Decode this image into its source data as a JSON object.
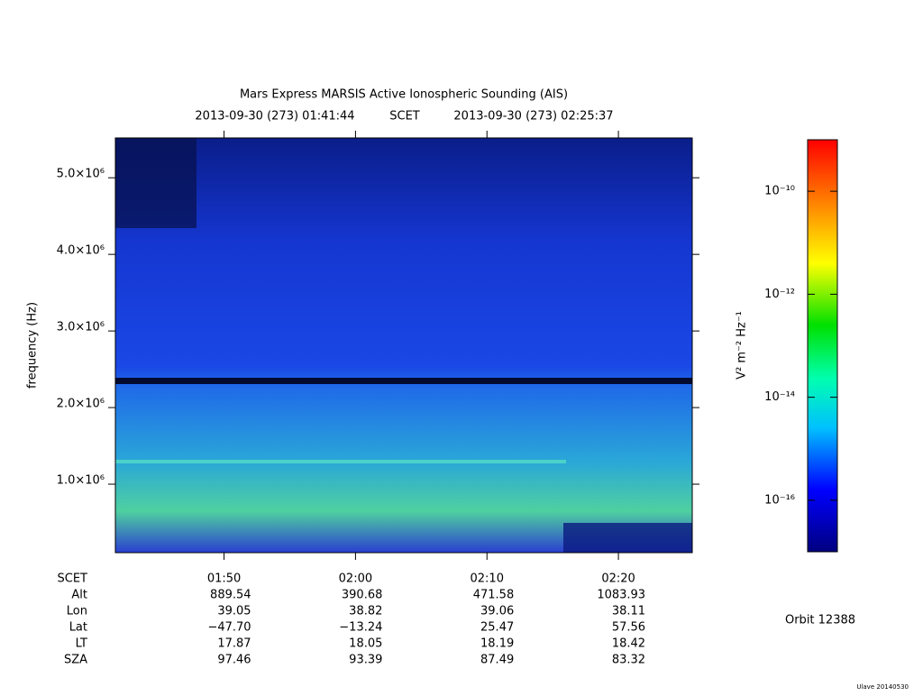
{
  "chart_data": {
    "type": "spectrogram",
    "title": "Mars Express MARSIS Active Ionospheric Sounding (AIS)",
    "time_start": "2013-09-30 (273) 01:41:44",
    "time_label": "SCET",
    "time_end": "2013-09-30 (273) 02:25:37",
    "ylabel": "frequency (Hz)",
    "xlim": [
      "01:41:44",
      "02:25:37"
    ],
    "xticks": [
      "01:50",
      "02:00",
      "02:10",
      "02:20"
    ],
    "ylim": [
      106000,
      5520000
    ],
    "yticks": [
      {
        "value": 1000000,
        "label": "1.0×10⁶"
      },
      {
        "value": 2000000,
        "label": "2.0×10⁶"
      },
      {
        "value": 3000000,
        "label": "3.0×10⁶"
      },
      {
        "value": 4000000,
        "label": "4.0×10⁶"
      },
      {
        "value": 5000000,
        "label": "5.0×10⁶"
      }
    ],
    "colorbar": {
      "label": "V² m⁻² Hz⁻¹",
      "log": true,
      "zlim": [
        1e-17,
        1e-09
      ],
      "ticks": [
        {
          "value": 1e-10,
          "label": "10⁻¹⁰"
        },
        {
          "value": 1e-12,
          "label": "10⁻¹²"
        },
        {
          "value": 1e-14,
          "label": "10⁻¹⁴"
        },
        {
          "value": 1e-16,
          "label": "10⁻¹⁶"
        }
      ]
    },
    "ephemeris": {
      "time_label": "SCET",
      "rows": [
        {
          "label": "Alt",
          "values": [
            "889.54",
            "390.68",
            "471.58",
            "1083.93"
          ]
        },
        {
          "label": "Lon",
          "values": [
            "39.05",
            "38.82",
            "39.06",
            "38.11"
          ]
        },
        {
          "label": "Lat",
          "values": [
            "−47.70",
            "−13.24",
            "25.47",
            "57.56"
          ]
        },
        {
          "label": "LT",
          "values": [
            "17.87",
            "18.05",
            "18.19",
            "18.42"
          ]
        },
        {
          "label": "SZA",
          "values": [
            "97.46",
            "93.39",
            "87.49",
            "83.32"
          ]
        }
      ]
    },
    "orbit": "Orbit 12388",
    "footer": "Ulave 20140530"
  }
}
